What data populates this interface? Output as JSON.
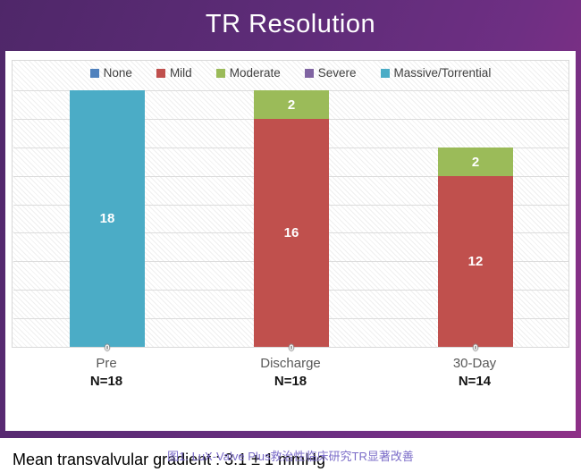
{
  "header": {
    "title": "TR Resolution"
  },
  "footnote": {
    "text": "Mean transvalvular gradient : 3.1 ± 1 mmHg"
  },
  "figure": {
    "caption": "图1. LuX-Valve Plus救治性临床研究TR显著改善",
    "caption_color": "#7b6cc8"
  },
  "chart_data": {
    "type": "bar",
    "stacked": true,
    "title": "TR Resolution",
    "categories": [
      "Pre",
      "Discharge",
      "30-Day"
    ],
    "category_sublabels": [
      "N=18",
      "N=18",
      "N=14"
    ],
    "series": [
      {
        "name": "None",
        "color": "#4F81BD",
        "values": [
          0,
          0,
          0
        ]
      },
      {
        "name": "Mild",
        "color": "#C0504D",
        "values": [
          0,
          16,
          12
        ]
      },
      {
        "name": "Moderate",
        "color": "#9BBB59",
        "values": [
          0,
          2,
          2
        ]
      },
      {
        "name": "Severe",
        "color": "#8064A2",
        "values": [
          0,
          0,
          0
        ]
      },
      {
        "name": "Massive/Torrential",
        "color": "#4BACC6",
        "values": [
          18,
          0,
          0
        ]
      }
    ],
    "base_zero_labels": [
      "0",
      "0",
      "0"
    ],
    "ylim": [
      0,
      18
    ],
    "gridline_step": 2,
    "grid": true,
    "legend_position": "top",
    "frame_colors": {
      "dark": "#4f2769",
      "light": "#8e3087"
    }
  }
}
